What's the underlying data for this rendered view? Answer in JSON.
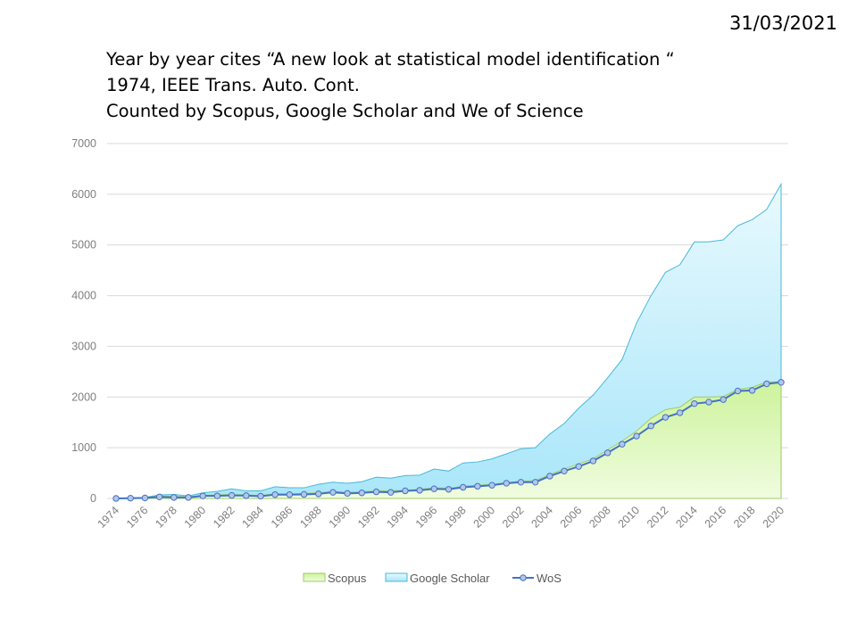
{
  "header": {
    "date": "31/03/2021",
    "title_lines": [
      "Year by year cites “A new look at statistical model identification “",
      "1974, IEEE Trans. Auto. Cont.",
      "Counted by Scopus, Google Scholar and We of Science"
    ]
  },
  "chart_data": {
    "type": "area",
    "title": "Year by year cites “A new look at statistical model identification “ 1974, IEEE Trans. Auto. Cont. Counted by Scopus, Google Scholar and We of Science",
    "x": [
      1974,
      1975,
      1976,
      1977,
      1978,
      1979,
      1980,
      1981,
      1982,
      1983,
      1984,
      1985,
      1986,
      1987,
      1988,
      1989,
      1990,
      1991,
      1992,
      1993,
      1994,
      1995,
      1996,
      1997,
      1998,
      1999,
      2000,
      2001,
      2002,
      2003,
      2004,
      2005,
      2006,
      2007,
      2008,
      2009,
      2010,
      2011,
      2012,
      2013,
      2014,
      2015,
      2016,
      2017,
      2018,
      2019,
      2020
    ],
    "x_tick_labels": [
      "1974",
      "1976",
      "1978",
      "1980",
      "1982",
      "1984",
      "1986",
      "1988",
      "1990",
      "1992",
      "1994",
      "1996",
      "1998",
      "2000",
      "2002",
      "2004",
      "2006",
      "2008",
      "2010",
      "2012",
      "2014",
      "2016",
      "2018",
      "2020"
    ],
    "ylim": [
      0,
      7000
    ],
    "y_ticks": [
      "0",
      "1000",
      "2000",
      "3000",
      "4000",
      "5000",
      "6000",
      "7000"
    ],
    "grid": true,
    "legend_position": "bottom",
    "series": [
      {
        "name": "Scopus",
        "kind": "area",
        "color": "#ccf5a0",
        "stroke": "#9ccc65",
        "values": [
          5,
          8,
          12,
          50,
          40,
          30,
          60,
          70,
          80,
          70,
          60,
          90,
          90,
          100,
          110,
          140,
          120,
          130,
          150,
          150,
          160,
          180,
          210,
          200,
          240,
          260,
          280,
          310,
          340,
          350,
          470,
          580,
          680,
          780,
          960,
          1130,
          1330,
          1580,
          1750,
          1800,
          2000,
          2000,
          2010,
          2150,
          2190,
          2300,
          2300
        ]
      },
      {
        "name": "Google Scholar",
        "kind": "area",
        "color": "#bdeefb",
        "stroke": "#4bb8d6",
        "values": [
          5,
          10,
          20,
          70,
          80,
          50,
          110,
          140,
          190,
          150,
          150,
          230,
          210,
          210,
          280,
          320,
          300,
          330,
          420,
          400,
          450,
          460,
          580,
          540,
          700,
          720,
          780,
          880,
          980,
          1000,
          1270,
          1480,
          1780,
          2040,
          2380,
          2740,
          3460,
          4000,
          4460,
          4610,
          5060,
          5060,
          5100,
          5380,
          5500,
          5700,
          6200
        ]
      },
      {
        "name": "WoS",
        "kind": "line",
        "color": "#4472c4",
        "marker_fill": "#b4c7e7",
        "values": [
          0,
          5,
          10,
          30,
          20,
          20,
          50,
          50,
          60,
          55,
          45,
          75,
          75,
          80,
          90,
          120,
          100,
          110,
          130,
          120,
          150,
          160,
          190,
          180,
          220,
          240,
          260,
          300,
          320,
          320,
          440,
          540,
          630,
          740,
          900,
          1070,
          1230,
          1430,
          1600,
          1690,
          1870,
          1900,
          1950,
          2120,
          2130,
          2260,
          2290
        ]
      }
    ]
  }
}
